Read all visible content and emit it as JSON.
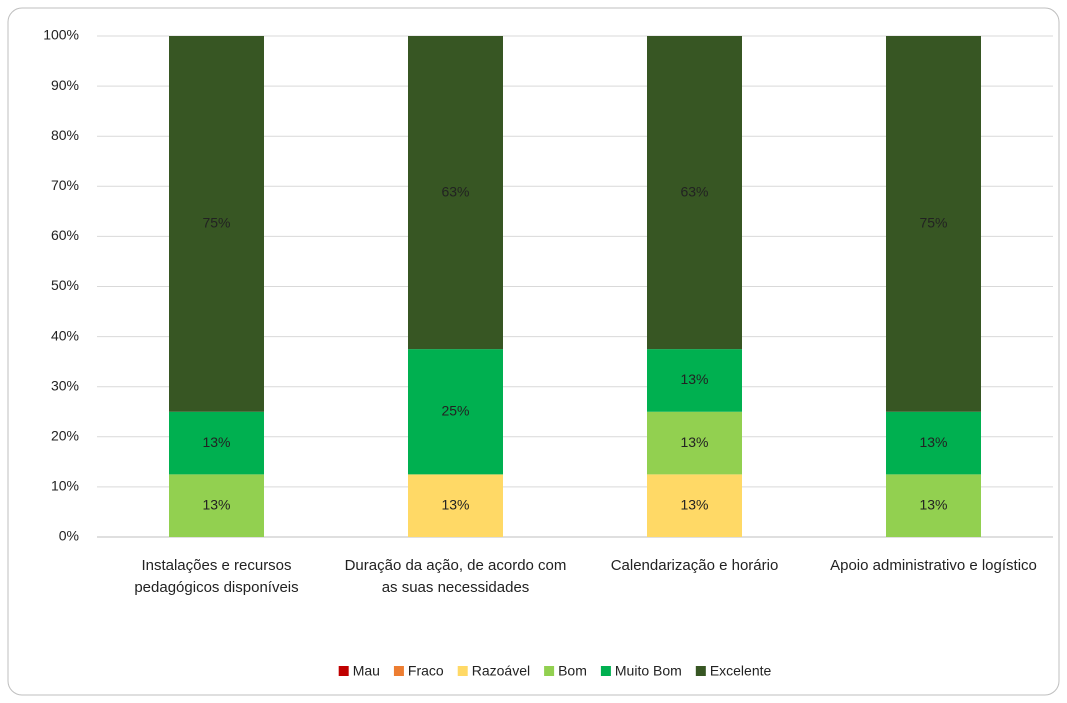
{
  "chart_data": {
    "type": "stacked_bar",
    "categories": [
      "Instalações e recursos pedagógicos disponíveis",
      "Duração da ação, de acordo com as suas necessidades",
      "Calendarização e horário",
      "Apoio administrativo e logístico"
    ],
    "series": [
      {
        "name": "Mau",
        "color": "#c00000",
        "values": [
          0,
          0,
          0,
          0
        ],
        "value_labels": [
          null,
          null,
          null,
          null
        ]
      },
      {
        "name": "Fraco",
        "color": "#ed7d31",
        "values": [
          0,
          0,
          0,
          0
        ],
        "value_labels": [
          null,
          null,
          null,
          null
        ]
      },
      {
        "name": "Razoável",
        "color": "#ffd966",
        "values": [
          0,
          12.5,
          12.5,
          0
        ],
        "value_labels": [
          null,
          "13%",
          "13%",
          null
        ]
      },
      {
        "name": "Bom",
        "color": "#92d050",
        "values": [
          12.5,
          0,
          12.5,
          12.5
        ],
        "value_labels": [
          "13%",
          null,
          "13%",
          "13%"
        ]
      },
      {
        "name": "Muito Bom",
        "color": "#00b050",
        "values": [
          12.5,
          25,
          12.5,
          12.5
        ],
        "value_labels": [
          "13%",
          "25%",
          "13%",
          "13%"
        ]
      },
      {
        "name": "Excelente",
        "color": "#375623",
        "values": [
          75,
          62.5,
          62.5,
          75
        ],
        "value_labels": [
          "75%",
          "63%",
          "63%",
          "75%"
        ]
      }
    ],
    "ylim": [
      0,
      100
    ],
    "yticks": [
      {
        "value": 0,
        "label": "0%"
      },
      {
        "value": 10,
        "label": "10%"
      },
      {
        "value": 20,
        "label": "20%"
      },
      {
        "value": 30,
        "label": "30%"
      },
      {
        "value": 40,
        "label": "40%"
      },
      {
        "value": 50,
        "label": "50%"
      },
      {
        "value": 60,
        "label": "60%"
      },
      {
        "value": 70,
        "label": "70%"
      },
      {
        "value": 80,
        "label": "80%"
      },
      {
        "value": 90,
        "label": "90%"
      },
      {
        "value": 100,
        "label": "100%"
      }
    ],
    "grid": true,
    "legend": "bottom"
  }
}
